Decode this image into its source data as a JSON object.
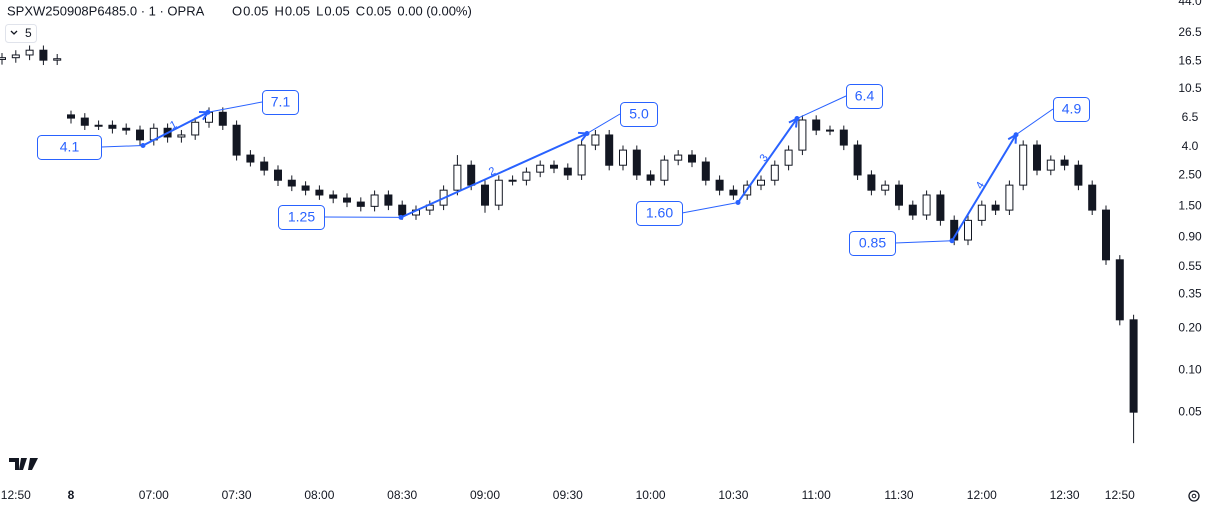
{
  "chart_data": {
    "type": "candlestick",
    "title": "SPXW250908P6485.0 · 1 · OPRA",
    "header": {
      "labels": [
        "O",
        "H",
        "L",
        "C"
      ],
      "values": [
        0.05,
        0.05,
        0.05,
        0.05
      ],
      "change_text": "0.00 (0.00%)"
    },
    "indicator_count": "5",
    "categories": [
      null,
      "12:50",
      null,
      null,
      null,
      "8",
      null,
      null,
      null,
      null,
      null,
      "07:00",
      null,
      null,
      null,
      null,
      null,
      "07:30",
      null,
      null,
      null,
      null,
      null,
      "08:00",
      null,
      null,
      null,
      null,
      null,
      "08:30",
      null,
      null,
      null,
      null,
      null,
      "09:00",
      null,
      null,
      null,
      null,
      null,
      "09:30",
      null,
      null,
      null,
      null,
      null,
      "10:00",
      null,
      null,
      null,
      null,
      null,
      "10:30",
      null,
      null,
      null,
      null,
      null,
      "11:00",
      null,
      null,
      null,
      null,
      null,
      "11:30",
      null,
      null,
      null,
      null,
      null,
      "12:00",
      null,
      null,
      null,
      null,
      null,
      "12:30",
      null,
      null,
      null,
      "12:50",
      null
    ],
    "open": [
      17.0,
      17.5,
      18.3,
      19.8,
      16.8,
      6.8,
      6.45,
      5.73,
      5.73,
      5.45,
      5.29,
      4.5,
      5.45,
      4.72,
      4.88,
      6.02,
      7.1,
      5.73,
      3.5,
      3.12,
      2.73,
      2.31,
      2.1,
      1.96,
      1.81,
      1.72,
      1.61,
      1.5,
      1.81,
      1.53,
      1.3,
      1.41,
      1.53,
      1.96,
      2.96,
      2.13,
      1.53,
      2.31,
      2.31,
      2.64,
      2.96,
      2.82,
      2.52,
      4.13,
      4.88,
      2.96,
      3.8,
      2.52,
      2.31,
      3.22,
      3.5,
      3.12,
      2.31,
      1.96,
      1.81,
      2.13,
      2.31,
      2.96,
      3.8,
      6.25,
      5.29,
      5.29,
      4.13,
      2.52,
      1.96,
      2.13,
      1.53,
      1.3,
      1.81,
      1.19,
      0.86,
      1.19,
      1.53,
      1.41,
      2.13,
      4.13,
      2.73,
      3.22,
      2.96,
      2.13,
      1.41,
      0.62,
      0.23
    ],
    "high": [
      18.9,
      19.8,
      21.4,
      21.4,
      18.6,
      7.3,
      7.0,
      6.2,
      6.2,
      5.9,
      5.7,
      5.9,
      5.9,
      5.3,
      6.5,
      7.7,
      7.7,
      6.2,
      3.8,
      3.4,
      2.95,
      2.5,
      2.27,
      2.12,
      1.95,
      1.86,
      1.74,
      1.95,
      1.95,
      1.65,
      1.52,
      1.65,
      2.12,
      3.5,
      3.2,
      2.3,
      2.5,
      2.5,
      2.85,
      3.2,
      3.2,
      3.05,
      4.5,
      5.3,
      5.3,
      4.1,
      4.1,
      2.72,
      3.48,
      3.8,
      3.8,
      3.37,
      2.5,
      2.12,
      2.3,
      2.5,
      3.2,
      4.1,
      6.75,
      6.75,
      5.7,
      5.7,
      4.46,
      2.72,
      2.3,
      2.3,
      1.65,
      1.95,
      1.95,
      1.29,
      1.29,
      1.65,
      1.65,
      2.3,
      4.46,
      4.46,
      3.48,
      3.48,
      3.2,
      2.3,
      1.52,
      0.67,
      0.25
    ],
    "low": [
      15.6,
      16.1,
      16.8,
      15.5,
      15.5,
      5.9,
      5.3,
      5.3,
      5.0,
      4.9,
      4.1,
      4.1,
      4.3,
      4.3,
      4.5,
      5.5,
      5.3,
      3.2,
      2.9,
      2.5,
      2.1,
      1.93,
      1.8,
      1.67,
      1.58,
      1.48,
      1.38,
      1.38,
      1.41,
      1.2,
      1.2,
      1.3,
      1.41,
      1.8,
      1.96,
      1.35,
      1.41,
      2.12,
      2.12,
      2.43,
      2.6,
      2.32,
      2.32,
      3.8,
      2.72,
      2.72,
      2.32,
      2.12,
      2.12,
      2.96,
      2.87,
      2.12,
      1.8,
      1.67,
      1.67,
      1.96,
      2.12,
      2.72,
      3.5,
      4.87,
      4.87,
      3.8,
      2.32,
      1.8,
      1.8,
      1.41,
      1.2,
      1.2,
      1.09,
      0.79,
      0.79,
      1.09,
      1.3,
      1.3,
      1.96,
      2.51,
      2.51,
      2.72,
      1.96,
      1.3,
      0.57,
      0.21,
      0.03
    ],
    "close": [
      17.5,
      18.3,
      19.8,
      16.8,
      17.2,
      6.45,
      5.73,
      5.73,
      5.45,
      5.29,
      4.5,
      5.45,
      4.72,
      4.88,
      6.02,
      7.1,
      5.73,
      3.5,
      3.12,
      2.73,
      2.31,
      2.1,
      1.96,
      1.81,
      1.72,
      1.61,
      1.5,
      1.81,
      1.53,
      1.3,
      1.41,
      1.53,
      1.96,
      2.96,
      2.13,
      1.53,
      2.31,
      2.31,
      2.64,
      2.96,
      2.82,
      2.52,
      4.13,
      4.88,
      2.96,
      3.8,
      2.52,
      2.31,
      3.22,
      3.5,
      3.12,
      2.31,
      1.96,
      1.81,
      2.13,
      2.31,
      2.96,
      3.8,
      6.25,
      5.29,
      5.29,
      4.13,
      2.52,
      1.96,
      2.13,
      1.53,
      1.3,
      1.81,
      1.19,
      0.86,
      1.19,
      1.53,
      1.41,
      2.13,
      4.13,
      2.73,
      3.22,
      2.96,
      2.13,
      1.41,
      0.62,
      0.23,
      0.05
    ],
    "up_color": "#ffffff",
    "down_color": "#131722",
    "wick_color": "#131722",
    "log_scale": true,
    "ylim": [
      0.0163,
      45.4
    ],
    "yticks": [
      {
        "value": 44,
        "label": "44.0"
      },
      26.5,
      16.5,
      10.5,
      6.5,
      {
        "value": 4,
        "label": "4.0"
      },
      {
        "value": 2.5,
        "label": "2.50"
      },
      {
        "value": 1.5,
        "label": "1.50"
      },
      {
        "value": 0.9,
        "label": "0.90"
      },
      0.55,
      0.35,
      {
        "value": 0.2,
        "label": "0.20"
      },
      {
        "value": 0.1,
        "label": "0.10"
      },
      0.05
    ],
    "callouts": {
      "values": [
        4.1,
        7.1,
        1.25,
        5.0,
        1.6,
        6.4,
        0.85,
        4.9
      ],
      "value_labels": [
        "4.1",
        "7.1",
        "1.25",
        "5.0",
        "1.60",
        "6.4",
        "0.85",
        "4.9"
      ],
      "color": "#2962ff"
    },
    "legs": [
      "1",
      "2",
      "3",
      "4"
    ]
  }
}
